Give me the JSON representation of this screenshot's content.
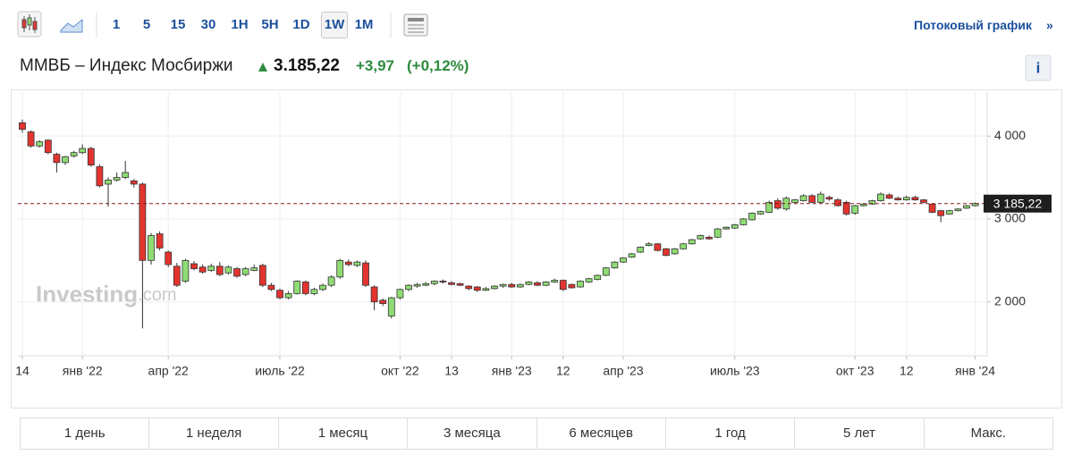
{
  "toolbar": {
    "intervals": [
      "1",
      "5",
      "15",
      "30",
      "1H",
      "5H",
      "1D",
      "1W",
      "1M"
    ],
    "active_index": 7,
    "stream_link": "Потоковый график",
    "stream_arrow": "»"
  },
  "header": {
    "title": "ММВБ – Индекс Мосбиржи",
    "price": "3.185,22",
    "change": "+3,97",
    "change_percent": "(+0,12%)",
    "info": "i"
  },
  "watermark": {
    "brand": "Investing",
    "suffix": ".com"
  },
  "ranges": [
    "1 день",
    "1 неделя",
    "1 месяц",
    "3 месяца",
    "6 месяцев",
    "1 год",
    "5 лет",
    "Макс."
  ],
  "chart_data": {
    "type": "candlestick",
    "categories": [
      "14",
      null,
      null,
      null,
      null,
      null,
      null,
      "янв '22",
      null,
      null,
      null,
      null,
      null,
      null,
      null,
      null,
      null,
      "апр '22",
      null,
      null,
      null,
      null,
      null,
      null,
      null,
      null,
      null,
      null,
      null,
      null,
      "июль '22",
      null,
      null,
      null,
      null,
      null,
      null,
      null,
      null,
      null,
      null,
      null,
      null,
      null,
      "окт '22",
      null,
      null,
      null,
      null,
      null,
      "13",
      null,
      null,
      null,
      null,
      null,
      null,
      "янв '23",
      null,
      null,
      null,
      null,
      null,
      "12",
      null,
      null,
      null,
      null,
      null,
      null,
      "апр '23",
      null,
      null,
      null,
      null,
      null,
      null,
      null,
      null,
      null,
      null,
      null,
      null,
      "июль '23",
      null,
      null,
      null,
      null,
      null,
      null,
      null,
      null,
      null,
      null,
      null,
      null,
      null,
      "окт '23",
      null,
      null,
      null,
      null,
      null,
      "12",
      null,
      null,
      null,
      null,
      null,
      null,
      null,
      "янв '24"
    ],
    "open": [
      4160,
      4050,
      3880,
      3950,
      3780,
      3680,
      3760,
      3800,
      3850,
      3630,
      3420,
      3470,
      3500,
      3460,
      3420,
      2500,
      2820,
      2600,
      2430,
      2250,
      2460,
      2420,
      2380,
      2430,
      2350,
      2400,
      2330,
      2380,
      2440,
      2200,
      2140,
      2050,
      2100,
      2240,
      2100,
      2150,
      2200,
      2300,
      2480,
      2440,
      2470,
      2180,
      2020,
      1830,
      2050,
      2150,
      2190,
      2200,
      2220,
      2250,
      2230,
      2220,
      2190,
      2180,
      2140,
      2160,
      2190,
      2210,
      2180,
      2210,
      2230,
      2200,
      2240,
      2260,
      2210,
      2180,
      2240,
      2270,
      2320,
      2410,
      2480,
      2540,
      2600,
      2680,
      2700,
      2640,
      2580,
      2640,
      2700,
      2760,
      2780,
      2780,
      2880,
      2890,
      2930,
      2990,
      3060,
      3080,
      3220,
      3120,
      3200,
      3220,
      3280,
      3200,
      3260,
      3230,
      3200,
      3070,
      3160,
      3180,
      3220,
      3290,
      3250,
      3230,
      3260,
      3230,
      3180,
      3100,
      3060,
      3100,
      3130,
      3160
    ],
    "high": [
      4200,
      4070,
      3950,
      3960,
      3800,
      3760,
      3820,
      3900,
      3870,
      3660,
      3500,
      3560,
      3700,
      3480,
      3440,
      2830,
      2850,
      2620,
      2470,
      2520,
      2490,
      2450,
      2460,
      2480,
      2440,
      2420,
      2420,
      2450,
      2460,
      2230,
      2160,
      2130,
      2260,
      2260,
      2170,
      2220,
      2320,
      2520,
      2510,
      2500,
      2500,
      2200,
      2040,
      2060,
      2160,
      2210,
      2230,
      2240,
      2260,
      2270,
      2250,
      2230,
      2200,
      2190,
      2180,
      2200,
      2220,
      2230,
      2220,
      2250,
      2250,
      2250,
      2280,
      2270,
      2220,
      2260,
      2290,
      2330,
      2420,
      2490,
      2540,
      2590,
      2670,
      2720,
      2710,
      2650,
      2650,
      2710,
      2760,
      2810,
      2800,
      2890,
      2910,
      2940,
      3010,
      3080,
      3100,
      3220,
      3250,
      3270,
      3240,
      3300,
      3300,
      3330,
      3280,
      3250,
      3220,
      3170,
      3190,
      3230,
      3320,
      3310,
      3270,
      3280,
      3280,
      3240,
      3190,
      3110,
      3110,
      3130,
      3170,
      3200
    ],
    "low": [
      4040,
      3860,
      3860,
      3780,
      3560,
      3650,
      3740,
      3780,
      3630,
      3380,
      3150,
      3450,
      3480,
      3380,
      1680,
      2450,
      2620,
      2420,
      2180,
      2230,
      2380,
      2340,
      2360,
      2310,
      2330,
      2290,
      2310,
      2370,
      2180,
      2130,
      2030,
      2030,
      2090,
      2080,
      2080,
      2130,
      2180,
      2280,
      2430,
      2420,
      2180,
      1900,
      1950,
      1800,
      2030,
      2130,
      2170,
      2190,
      2200,
      2220,
      2200,
      2190,
      2140,
      2120,
      2130,
      2150,
      2170,
      2170,
      2170,
      2200,
      2190,
      2190,
      2230,
      2130,
      2160,
      2170,
      2230,
      2260,
      2310,
      2400,
      2470,
      2530,
      2590,
      2670,
      2610,
      2550,
      2570,
      2630,
      2690,
      2750,
      2750,
      2770,
      2870,
      2880,
      2920,
      2980,
      3050,
      3070,
      3110,
      3100,
      3180,
      3210,
      3190,
      3190,
      3220,
      3150,
      3040,
      3050,
      3150,
      3170,
      3210,
      3240,
      3220,
      3220,
      3220,
      3190,
      3070,
      2960,
      3050,
      3090,
      3120,
      3150
    ],
    "close": [
      4080,
      3880,
      3930,
      3800,
      3680,
      3750,
      3800,
      3850,
      3650,
      3400,
      3470,
      3500,
      3560,
      3420,
      2500,
      2800,
      2650,
      2450,
      2200,
      2500,
      2400,
      2360,
      2430,
      2330,
      2420,
      2310,
      2400,
      2410,
      2200,
      2150,
      2050,
      2100,
      2250,
      2100,
      2150,
      2200,
      2300,
      2500,
      2450,
      2480,
      2200,
      2000,
      1980,
      2050,
      2150,
      2200,
      2210,
      2220,
      2250,
      2240,
      2210,
      2200,
      2160,
      2140,
      2160,
      2190,
      2210,
      2180,
      2210,
      2240,
      2200,
      2240,
      2260,
      2150,
      2170,
      2250,
      2280,
      2320,
      2410,
      2480,
      2530,
      2580,
      2660,
      2700,
      2620,
      2560,
      2640,
      2700,
      2750,
      2800,
      2760,
      2880,
      2900,
      2930,
      3000,
      3070,
      3090,
      3200,
      3130,
      3250,
      3230,
      3280,
      3200,
      3300,
      3240,
      3160,
      3060,
      3160,
      3180,
      3220,
      3300,
      3250,
      3230,
      3260,
      3230,
      3200,
      3080,
      3040,
      3100,
      3120,
      3160,
      3185.22
    ],
    "up_color": "#8fdc74",
    "down_color": "#e3342f",
    "ylim": [
      1350,
      4530
    ],
    "yticks": [
      {
        "value": 2000,
        "label": "2 000"
      },
      {
        "value": 3000,
        "label": "3 000"
      },
      {
        "value": 4000,
        "label": "4 000"
      }
    ],
    "grid": true,
    "last_price": 3185.22,
    "last_price_label": "3 185,22"
  }
}
